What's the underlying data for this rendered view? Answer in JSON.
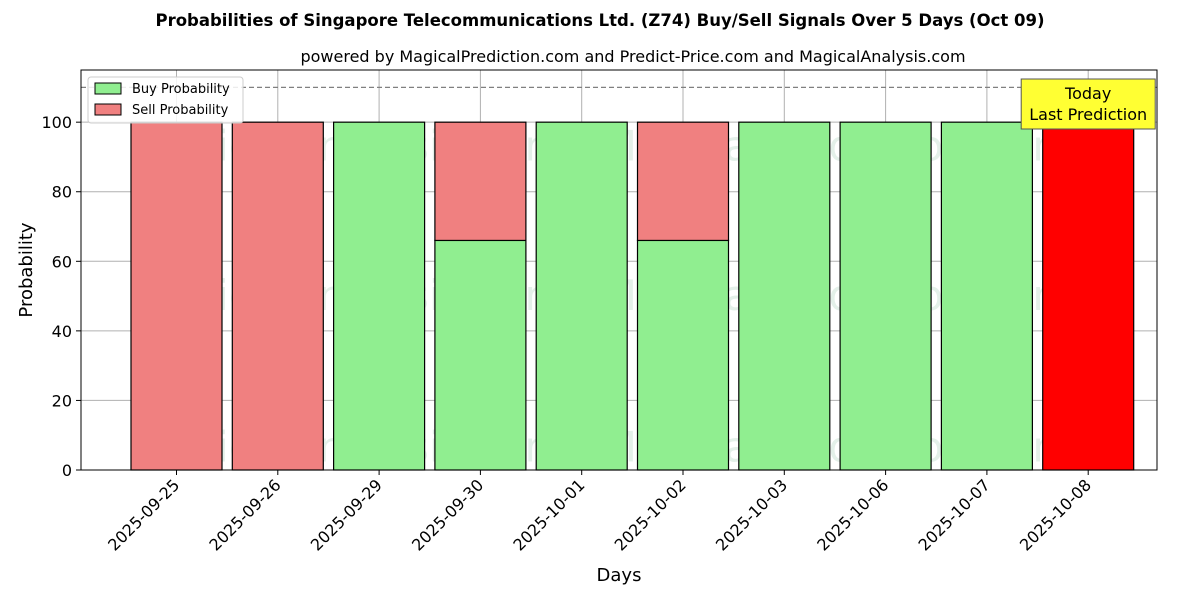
{
  "chart_data": {
    "type": "bar",
    "title": "Probabilities of Singapore Telecommunications Ltd. (Z74) Buy/Sell Signals Over 5 Days (Oct 09)",
    "subtitle": "powered by MagicalPrediction.com and Predict-Price.com and MagicalAnalysis.com",
    "xlabel": "Days",
    "ylabel": "Probability",
    "ylim": [
      0,
      115
    ],
    "yticks": [
      0,
      20,
      40,
      60,
      80,
      100
    ],
    "grid": true,
    "legend_position": "top-left",
    "reference_line": 110,
    "categories": [
      "2025-09-25",
      "2025-09-26",
      "2025-09-29",
      "2025-09-30",
      "2025-10-01",
      "2025-10-02",
      "2025-10-03",
      "2025-10-06",
      "2025-10-07",
      "2025-10-08"
    ],
    "series": [
      {
        "name": "Buy Probability",
        "color": "#90ee90",
        "values": [
          0,
          0,
          100,
          66,
          100,
          66,
          100,
          100,
          100,
          0
        ]
      },
      {
        "name": "Sell Probability",
        "color": "#f08080",
        "values": [
          100,
          100,
          0,
          34,
          0,
          34,
          0,
          0,
          0,
          100
        ]
      }
    ],
    "highlight": {
      "index": 9,
      "color": "#ff0000"
    },
    "annotation": {
      "lines": [
        "Today",
        "Last Prediction"
      ],
      "color": "#ffff33"
    },
    "watermarks": [
      "MagicalAnalysis.com",
      "MagicalPrediction.com"
    ]
  }
}
